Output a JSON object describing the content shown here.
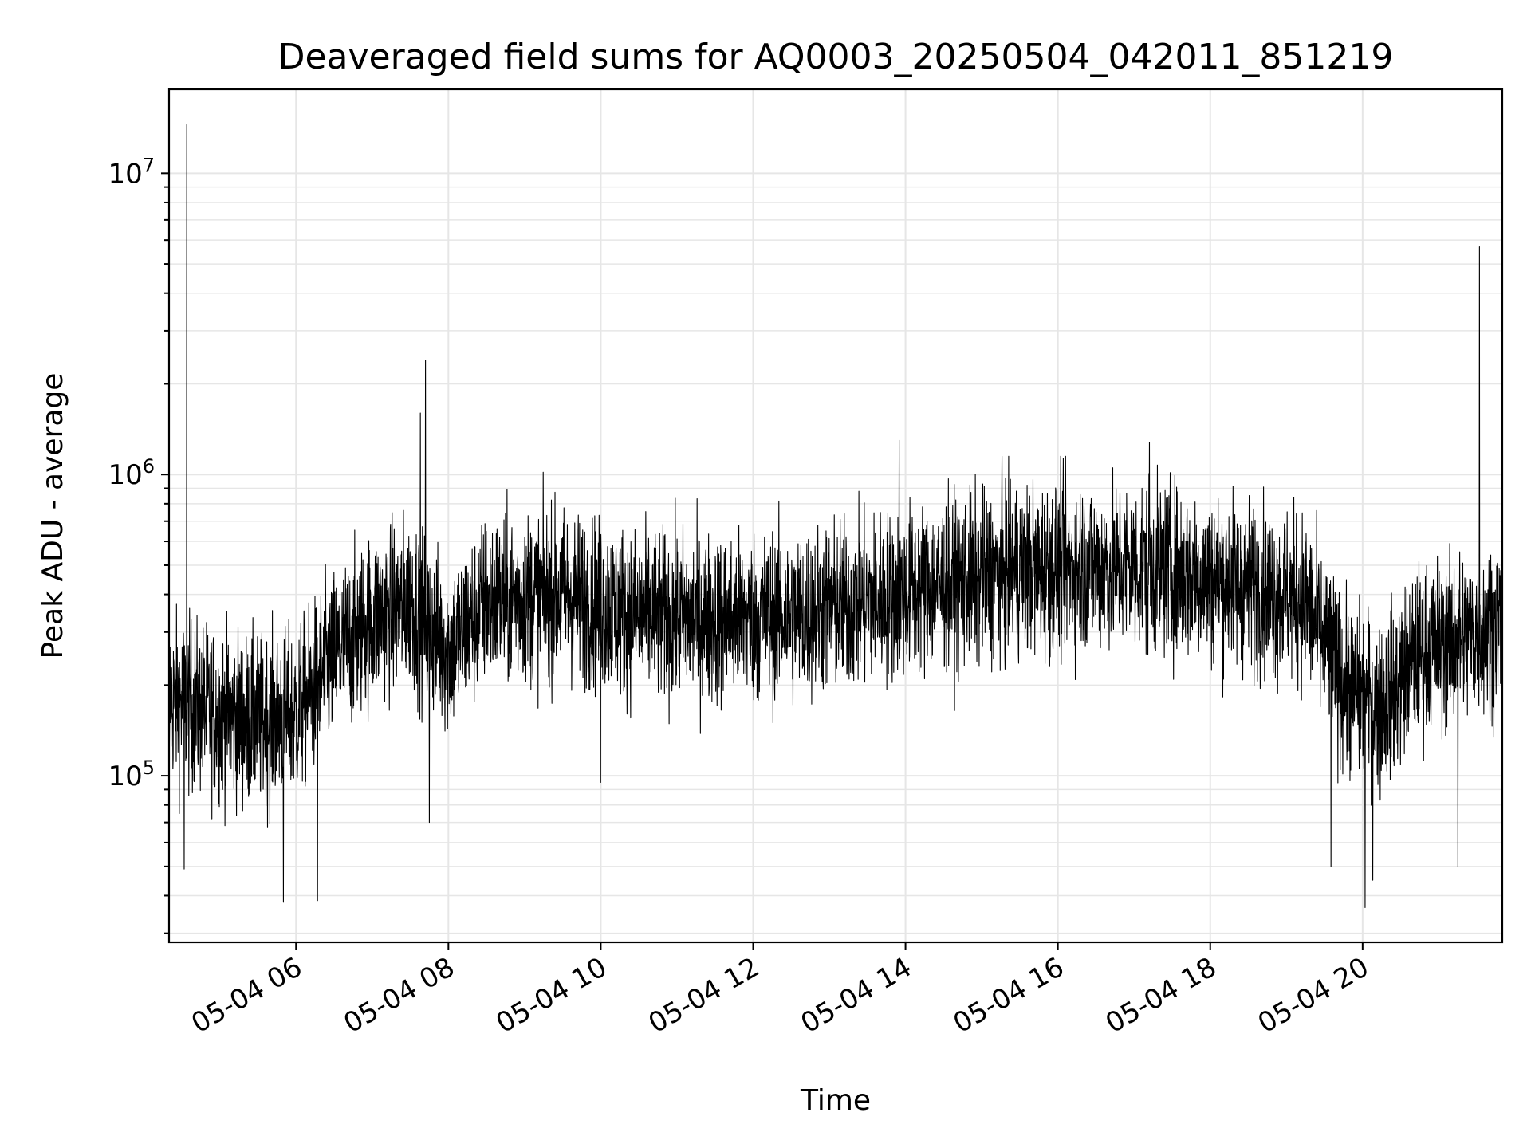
{
  "chart_data": {
    "type": "line",
    "title": "Deaveraged field sums for AQ0003_20250504_042011_851219",
    "xlabel": "Time",
    "ylabel": "Peak ADU - average",
    "yscale": "log",
    "ylim": [
      28000,
      19000000
    ],
    "xlim": [
      "2025-05-04 04:20",
      "2025-05-04 21:50"
    ],
    "grid": true,
    "x_ticks": [
      "05-04 06",
      "05-04 08",
      "05-04 10",
      "05-04 12",
      "05-04 14",
      "05-04 16",
      "05-04 18",
      "05-04 20"
    ],
    "y_ticks": [
      100000,
      1000000,
      10000000
    ],
    "y_tick_labels": [
      {
        "base": "10",
        "exp": "5"
      },
      {
        "base": "10",
        "exp": "6"
      },
      {
        "base": "10",
        "exp": "7"
      }
    ],
    "series": [
      {
        "color": "#000000",
        "baseline": [
          {
            "time": "2025-05-04 04:20",
            "value": 180000
          },
          {
            "time": "2025-05-04 05:00",
            "value": 160000
          },
          {
            "time": "2025-05-04 05:30",
            "value": 150000
          },
          {
            "time": "2025-05-04 06:00",
            "value": 160000
          },
          {
            "time": "2025-05-04 06:30",
            "value": 250000
          },
          {
            "time": "2025-05-04 07:00",
            "value": 330000
          },
          {
            "time": "2025-05-04 07:30",
            "value": 380000
          },
          {
            "time": "2025-05-04 08:00",
            "value": 260000
          },
          {
            "time": "2025-05-04 08:30",
            "value": 380000
          },
          {
            "time": "2025-05-04 09:30",
            "value": 400000
          },
          {
            "time": "2025-05-04 10:30",
            "value": 340000
          },
          {
            "time": "2025-05-04 11:30",
            "value": 330000
          },
          {
            "time": "2025-05-04 12:30",
            "value": 340000
          },
          {
            "time": "2025-05-04 13:30",
            "value": 380000
          },
          {
            "time": "2025-05-04 14:30",
            "value": 430000
          },
          {
            "time": "2025-05-04 15:30",
            "value": 480000
          },
          {
            "time": "2025-05-04 16:30",
            "value": 500000
          },
          {
            "time": "2025-05-04 17:30",
            "value": 480000
          },
          {
            "time": "2025-05-04 18:30",
            "value": 430000
          },
          {
            "time": "2025-05-04 19:15",
            "value": 380000
          },
          {
            "time": "2025-05-04 19:45",
            "value": 200000
          },
          {
            "time": "2025-05-04 20:15",
            "value": 170000
          },
          {
            "time": "2025-05-04 20:45",
            "value": 260000
          },
          {
            "time": "2025-05-04 21:30",
            "value": 300000
          },
          {
            "time": "2025-05-04 21:50",
            "value": 330000
          }
        ],
        "spikes": [
          {
            "time": "2025-05-04 04:34",
            "value": 14500000
          },
          {
            "time": "2025-05-04 07:42",
            "value": 2400000
          },
          {
            "time": "2025-05-04 07:38",
            "value": 1600000
          },
          {
            "time": "2025-05-04 13:55",
            "value": 1300000
          },
          {
            "time": "2025-05-04 17:12",
            "value": 1280000
          },
          {
            "time": "2025-05-04 21:32",
            "value": 5700000
          }
        ],
        "dips": [
          {
            "time": "2025-05-04 04:32",
            "value": 49000
          },
          {
            "time": "2025-05-04 05:50",
            "value": 38000
          },
          {
            "time": "2025-05-04 06:17",
            "value": 38500
          },
          {
            "time": "2025-05-04 07:45",
            "value": 70000
          },
          {
            "time": "2025-05-04 10:00",
            "value": 95000
          },
          {
            "time": "2025-05-04 19:35",
            "value": 50000
          },
          {
            "time": "2025-05-04 20:02",
            "value": 36500
          },
          {
            "time": "2025-05-04 20:08",
            "value": 45000
          },
          {
            "time": "2025-05-04 21:15",
            "value": 50000
          }
        ]
      }
    ]
  }
}
